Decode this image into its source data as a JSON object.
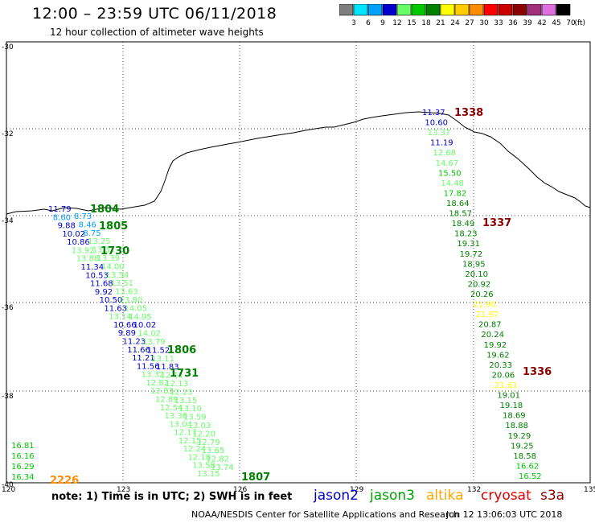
{
  "header": {
    "title": "12:00 – 23:59 UTC 06/11/2018",
    "subtitle": "12 hour collection of altimeter wave heights"
  },
  "colorbar": {
    "unit": "(ft)",
    "bins": [
      {
        "label": "3",
        "color": "#7f7f7f"
      },
      {
        "label": "6",
        "color": "#00e5ff"
      },
      {
        "label": "9",
        "color": "#00a0ff"
      },
      {
        "label": "12",
        "color": "#0000cd"
      },
      {
        "label": "15",
        "color": "#66ff66"
      },
      {
        "label": "18",
        "color": "#00c800"
      },
      {
        "label": "21",
        "color": "#008000"
      },
      {
        "label": "24",
        "color": "#ffff00"
      },
      {
        "label": "27",
        "color": "#ffcc00"
      },
      {
        "label": "30",
        "color": "#ff8c00"
      },
      {
        "label": "33",
        "color": "#ff0000"
      },
      {
        "label": "36",
        "color": "#c80000"
      },
      {
        "label": "39",
        "color": "#8b0000"
      },
      {
        "label": "42",
        "color": "#a0307a"
      },
      {
        "label": "45",
        "color": "#e070e0"
      },
      {
        "label": "70",
        "color": "#000000"
      }
    ]
  },
  "axes": {
    "lat_ticks": [
      "-30",
      "-32",
      "-34",
      "-36",
      "-38",
      "-40"
    ],
    "lon_ticks": [
      "120",
      "123",
      "126",
      "129",
      "132",
      "135"
    ]
  },
  "tracks": [
    {
      "label": "1804",
      "color": "#008000"
    },
    {
      "label": "1805",
      "color": "#008000"
    },
    {
      "label": "1730",
      "color": "#008000"
    },
    {
      "label": "1806",
      "color": "#008000"
    },
    {
      "label": "1731",
      "color": "#008000"
    },
    {
      "label": "1807",
      "color": "#008000"
    },
    {
      "label": "1338",
      "color": "#8b0000"
    },
    {
      "label": "1337",
      "color": "#8b0000"
    },
    {
      "label": "1336",
      "color": "#8b0000"
    },
    {
      "label": "2226",
      "color": "#ff8c00"
    }
  ],
  "east_track_values": [
    {
      "v": "11.37",
      "c": "#0000cd"
    },
    {
      "v": "10.60",
      "c": "#0000cd"
    },
    {
      "v": "13.37",
      "c": "#66ff66"
    },
    {
      "v": "11.19",
      "c": "#0000cd"
    },
    {
      "v": "12.68",
      "c": "#66ff66"
    },
    {
      "v": "14.67",
      "c": "#66ff66"
    },
    {
      "v": "15.50",
      "c": "#00c800"
    },
    {
      "v": "14.48",
      "c": "#66ff66"
    },
    {
      "v": "17.82",
      "c": "#00c800"
    },
    {
      "v": "18.64",
      "c": "#008000"
    },
    {
      "v": "18.57",
      "c": "#008000"
    },
    {
      "v": "18.49",
      "c": "#008000"
    },
    {
      "v": "18.23",
      "c": "#008000"
    },
    {
      "v": "19.31",
      "c": "#008000"
    },
    {
      "v": "19.72",
      "c": "#008000"
    },
    {
      "v": "18.95",
      "c": "#008000"
    },
    {
      "v": "20.10",
      "c": "#008000"
    },
    {
      "v": "20.92",
      "c": "#008000"
    },
    {
      "v": "20.26",
      "c": "#008000"
    },
    {
      "v": "21.90",
      "c": "#ffff00"
    },
    {
      "v": "21.97",
      "c": "#ffff00"
    },
    {
      "v": "20.87",
      "c": "#008000"
    },
    {
      "v": "20.24",
      "c": "#008000"
    },
    {
      "v": "19.92",
      "c": "#008000"
    },
    {
      "v": "19.62",
      "c": "#008000"
    },
    {
      "v": "20.33",
      "c": "#008000"
    },
    {
      "v": "20.06",
      "c": "#008000"
    },
    {
      "v": "21.61",
      "c": "#ffff00"
    },
    {
      "v": "19.01",
      "c": "#008000"
    },
    {
      "v": "19.18",
      "c": "#008000"
    },
    {
      "v": "18.69",
      "c": "#008000"
    },
    {
      "v": "18.88",
      "c": "#008000"
    },
    {
      "v": "19.29",
      "c": "#008000"
    },
    {
      "v": "19.25",
      "c": "#008000"
    },
    {
      "v": "18.58",
      "c": "#008000"
    },
    {
      "v": "16.62",
      "c": "#00c800"
    },
    {
      "v": "16.52",
      "c": "#00c800"
    }
  ],
  "sw_values": [
    {
      "v": "16.81",
      "c": "#00c800"
    },
    {
      "v": "16.16",
      "c": "#00c800"
    },
    {
      "v": "16.29",
      "c": "#00c800"
    },
    {
      "v": "16.34",
      "c": "#00c800"
    }
  ],
  "west_track_values": [
    {
      "v": "11.79",
      "c": "#0000cd"
    },
    {
      "v": "8.60",
      "c": "#00a0ff"
    },
    {
      "v": "9.88",
      "c": "#0000cd"
    },
    {
      "v": "10.02",
      "c": "#0000cd"
    },
    {
      "v": "10.86",
      "c": "#0000cd"
    },
    {
      "v": "13.92",
      "c": "#66ff66"
    },
    {
      "v": "13.88",
      "c": "#66ff66"
    },
    {
      "v": "11.34",
      "c": "#0000cd"
    },
    {
      "v": "10.53",
      "c": "#0000cd"
    },
    {
      "v": "11.68",
      "c": "#0000cd"
    },
    {
      "v": "9.92",
      "c": "#0000cd"
    },
    {
      "v": "10.50",
      "c": "#0000cd"
    },
    {
      "v": "11.63",
      "c": "#0000cd"
    },
    {
      "v": "13.14",
      "c": "#66ff66"
    },
    {
      "v": "10.66",
      "c": "#0000cd"
    },
    {
      "v": "9.89",
      "c": "#0000cd"
    },
    {
      "v": "11.23",
      "c": "#0000cd"
    },
    {
      "v": "11.66",
      "c": "#0000cd"
    },
    {
      "v": "11.21",
      "c": "#0000cd"
    },
    {
      "v": "11.56",
      "c": "#0000cd"
    },
    {
      "v": "13.32",
      "c": "#66ff66"
    },
    {
      "v": "12.82",
      "c": "#66ff66"
    },
    {
      "v": "12.83",
      "c": "#66ff66"
    },
    {
      "v": "12.89",
      "c": "#66ff66"
    },
    {
      "v": "12.54",
      "c": "#66ff66"
    },
    {
      "v": "13.36",
      "c": "#66ff66"
    },
    {
      "v": "13.04",
      "c": "#66ff66"
    },
    {
      "v": "12.17",
      "c": "#66ff66"
    },
    {
      "v": "12.15",
      "c": "#66ff66"
    },
    {
      "v": "12.24",
      "c": "#66ff66"
    },
    {
      "v": "12.18",
      "c": "#66ff66"
    },
    {
      "v": "13.58",
      "c": "#66ff66"
    },
    {
      "v": "13.15",
      "c": "#66ff66"
    }
  ],
  "mid_track_values": [
    {
      "v": "8.73",
      "c": "#00a0ff"
    },
    {
      "v": "8.46",
      "c": "#00a0ff"
    },
    {
      "v": "8.75",
      "c": "#00a0ff"
    },
    {
      "v": "13.25",
      "c": "#66ff66"
    },
    {
      "v": "13.31",
      "c": "#66ff66"
    },
    {
      "v": "13.39",
      "c": "#66ff66"
    },
    {
      "v": "14.00",
      "c": "#66ff66"
    },
    {
      "v": "13.54",
      "c": "#66ff66"
    },
    {
      "v": "13.51",
      "c": "#66ff66"
    },
    {
      "v": "13.63",
      "c": "#66ff66"
    },
    {
      "v": "13.80",
      "c": "#66ff66"
    },
    {
      "v": "14.05",
      "c": "#66ff66"
    },
    {
      "v": "14.95",
      "c": "#66ff66"
    },
    {
      "v": "10.02",
      "c": "#0000cd"
    },
    {
      "v": "14.02",
      "c": "#66ff66"
    },
    {
      "v": "13.79",
      "c": "#66ff66"
    },
    {
      "v": "11.52",
      "c": "#0000cd"
    },
    {
      "v": "13.11",
      "c": "#66ff66"
    },
    {
      "v": "11.83",
      "c": "#0000cd"
    },
    {
      "v": "12.11",
      "c": "#66ff66"
    },
    {
      "v": "12.13",
      "c": "#66ff66"
    },
    {
      "v": "12.23",
      "c": "#66ff66"
    },
    {
      "v": "13.15",
      "c": "#66ff66"
    },
    {
      "v": "13.10",
      "c": "#66ff66"
    },
    {
      "v": "13.59",
      "c": "#66ff66"
    },
    {
      "v": "13.03",
      "c": "#66ff66"
    },
    {
      "v": "12.20",
      "c": "#66ff66"
    },
    {
      "v": "12.79",
      "c": "#66ff66"
    },
    {
      "v": "13.65",
      "c": "#66ff66"
    },
    {
      "v": "12.82",
      "c": "#66ff66"
    },
    {
      "v": "13.74",
      "c": "#66ff66"
    }
  ],
  "note": "note:  1) Time is in UTC;  2) SWH is in feet",
  "legend": [
    {
      "label": "jason2",
      "color": "#0000cd"
    },
    {
      "label": "jason3",
      "color": "#00a000"
    },
    {
      "label": "altika",
      "color": "#ffa500"
    },
    {
      "label": "cryosat",
      "color": "#e00000"
    },
    {
      "label": "s3a",
      "color": "#8b0000"
    }
  ],
  "footer": {
    "credit": "NOAA/NESDIS Center for Satellite Applications and Research",
    "generated": "Jun 12 13:06:03 UTC 2018"
  }
}
